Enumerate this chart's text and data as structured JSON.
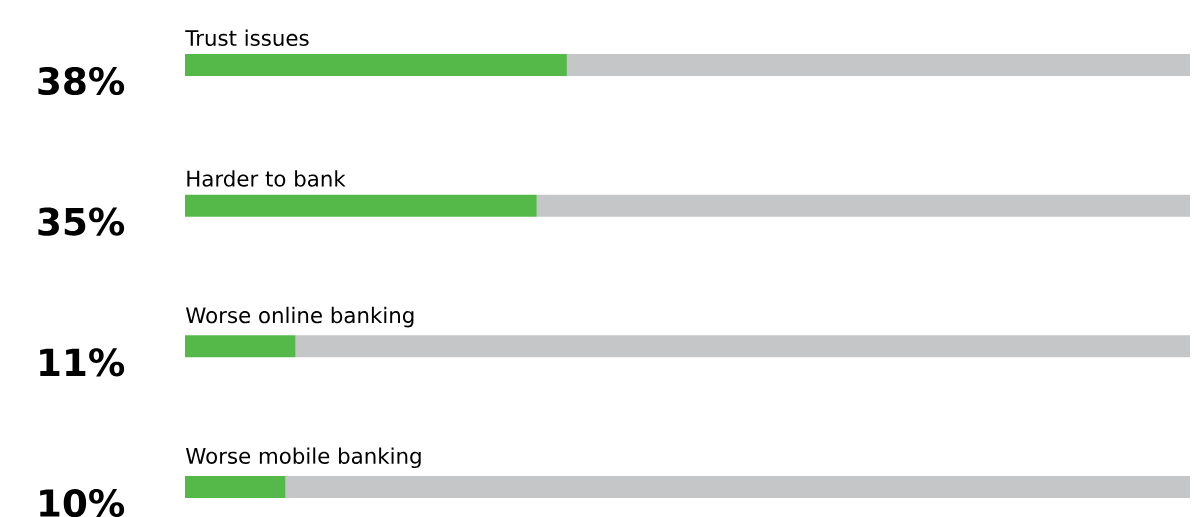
{
  "chart_data": {
    "type": "bar",
    "orientation": "horizontal",
    "stacked": true,
    "categories": [
      "Trust issues",
      "Harder to bank",
      "Worse online banking",
      "Worse mobile banking"
    ],
    "xlim": [
      0,
      100
    ],
    "series": [
      {
        "color": "#55b949",
        "values": [
          38,
          35,
          11,
          10
        ],
        "value_labels": [
          "38%",
          "35%",
          "11%",
          "10%"
        ]
      },
      {
        "color": "#c5c6c8",
        "values": [
          62,
          65,
          89,
          90
        ]
      }
    ]
  }
}
